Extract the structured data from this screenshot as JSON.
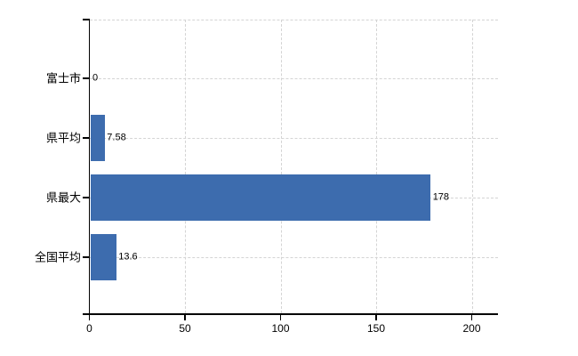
{
  "chart_data": {
    "type": "bar",
    "orientation": "horizontal",
    "title": "",
    "xlabel": "",
    "ylabel": "",
    "categories": [
      "富士市",
      "県平均",
      "県最大",
      "全国平均"
    ],
    "values": [
      0,
      7.58,
      178,
      13.6
    ],
    "value_labels": [
      "0",
      "7.58",
      "178",
      "13.6"
    ],
    "x_ticks": [
      0,
      50,
      100,
      150,
      200
    ],
    "x_tick_labels": [
      "0",
      "50",
      "100",
      "150",
      "200"
    ],
    "xlim": [
      0,
      213
    ],
    "grid": true,
    "legend": false,
    "colors": {
      "bar": "#3d6cae",
      "axis": "#000000",
      "gridline": "#d4d4d4",
      "text": "#000000",
      "background": "#ffffff"
    }
  }
}
